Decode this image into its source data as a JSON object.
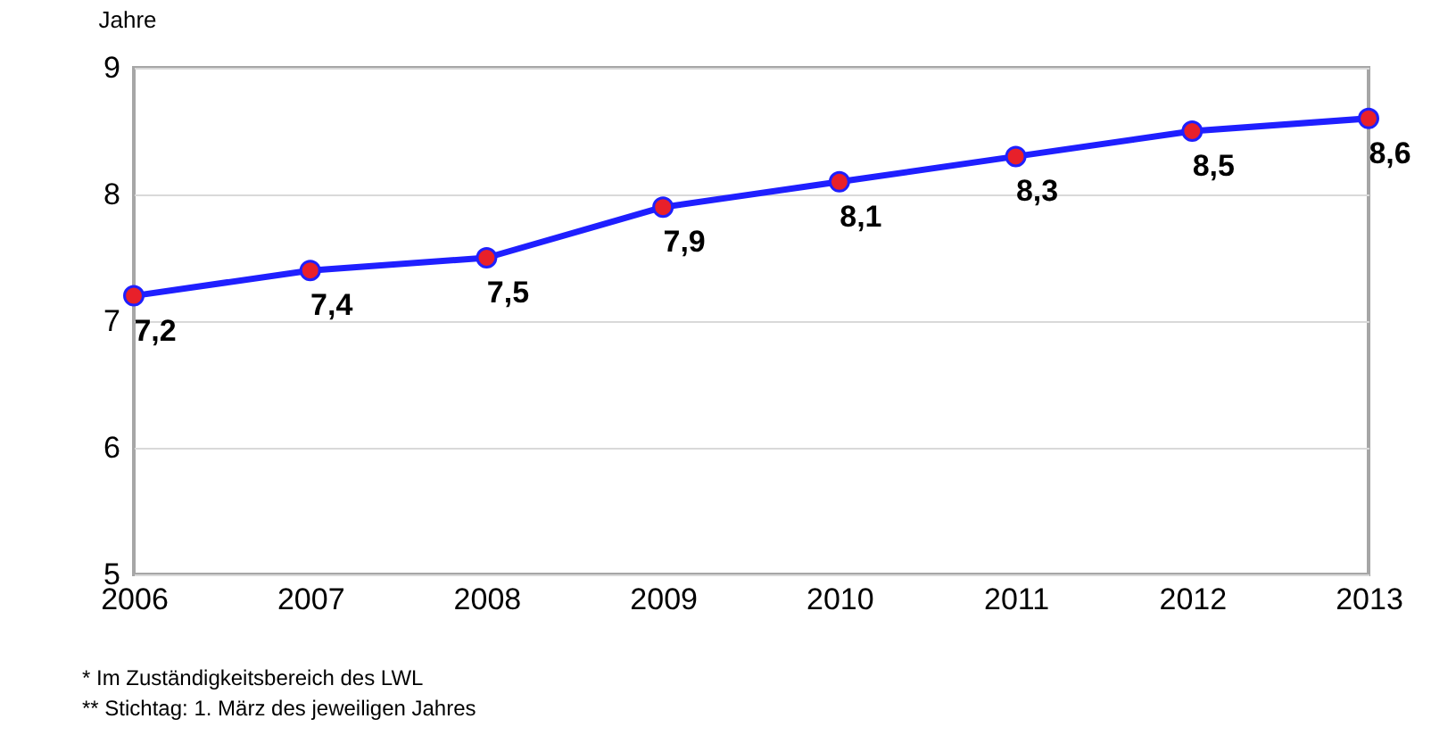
{
  "chart_data": {
    "type": "line",
    "ylabel": "Jahre",
    "x": [
      2006,
      2007,
      2008,
      2009,
      2010,
      2011,
      2012,
      2013
    ],
    "series": [
      {
        "color": "#1f1fff",
        "values": [
          7.2,
          7.4,
          7.5,
          7.9,
          8.1,
          8.3,
          8.5,
          8.6
        ],
        "value_labels": [
          "7,2",
          "7,4",
          "7,5",
          "7,9",
          "8,1",
          "8,3",
          "8,5",
          "8,6"
        ]
      }
    ],
    "xlim": [
      2006,
      2013
    ],
    "xticks": [
      2006,
      2007,
      2008,
      2009,
      2010,
      2011,
      2012,
      2013
    ],
    "ylim": [
      5,
      9
    ],
    "yticks": [
      5,
      6,
      7,
      8,
      9
    ],
    "grid": "y",
    "marker": "circle",
    "line_style": "solid",
    "annotations": [
      "* Im Zuständigkeitsbereich des LWL",
      "** Stichtag: 1. März des jeweiligen Jahres"
    ]
  }
}
